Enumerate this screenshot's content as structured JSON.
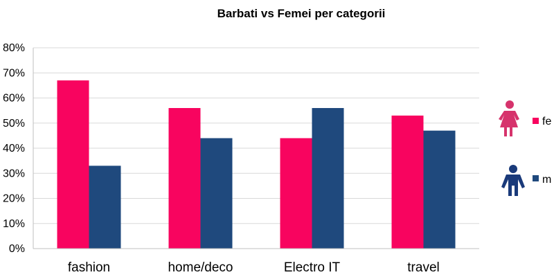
{
  "chart_data": {
    "type": "bar",
    "title": "Barbati vs Femei per categorii",
    "categories": [
      "fashion",
      "home/deco",
      "Electro IT",
      "travel"
    ],
    "series": [
      {
        "name": "fe",
        "values": [
          67,
          56,
          44,
          53
        ],
        "color": "#f8045f"
      },
      {
        "name": "m",
        "values": [
          33,
          44,
          56,
          47
        ],
        "color": "#1f497d"
      }
    ],
    "xlabel": "",
    "ylabel": "",
    "ylim": [
      0,
      80
    ],
    "yticks": [
      "0%",
      "10%",
      "20%",
      "30%",
      "40%",
      "50%",
      "60%",
      "70%",
      "80%"
    ],
    "grid": true,
    "legend_position": "right",
    "legend_icons": [
      "female-figure-icon",
      "male-figure-icon"
    ]
  }
}
